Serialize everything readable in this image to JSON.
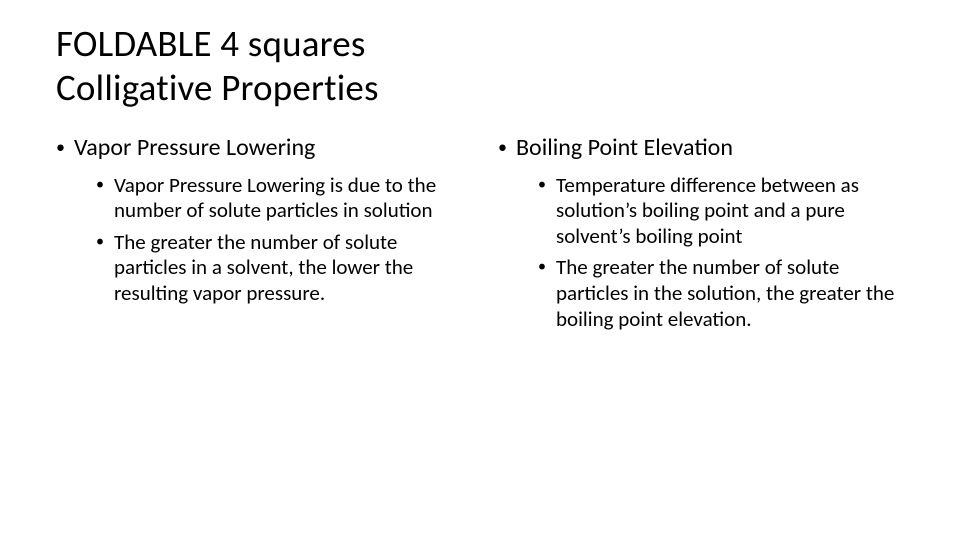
{
  "title_line1": "FOLDABLE 4 squares",
  "title_line2": "Colligative Properties",
  "left": {
    "heading": "Vapor Pressure Lowering",
    "points": [
      "Vapor Pressure Lowering is due to the number of solute particles in solution",
      "The greater the number of solute particles in a solvent, the lower the resulting vapor pressure."
    ]
  },
  "right": {
    "heading": "Boiling Point Elevation",
    "points": [
      "Temperature difference between as solution’s boiling point and a pure solvent’s boiling point",
      "The greater the number of solute particles in the solution, the greater the boiling point elevation."
    ]
  },
  "colors": {
    "background": "#ffffff",
    "text": "#000000"
  },
  "typography": {
    "title_fontsize_pt": 28,
    "h1_bullet_fontsize_pt": 18,
    "h2_bullet_fontsize_pt": 16,
    "font_family": "Calibri"
  }
}
